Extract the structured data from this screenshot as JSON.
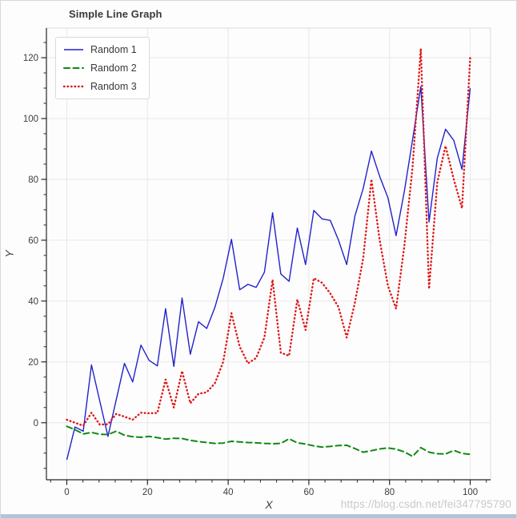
{
  "page": {
    "watermark": "https://blog.csdn.net/fei347795790"
  },
  "axes": {
    "x_label": "X",
    "y_label": "Y",
    "x_ticks": [
      0,
      20,
      40,
      60,
      80,
      100
    ],
    "y_ticks": [
      0,
      20,
      40,
      60,
      80,
      100,
      120
    ],
    "x_minor_step": 4,
    "y_minor_step": 5
  },
  "chart_data": {
    "type": "line",
    "title": "Simple Line Graph",
    "xlabel": "X",
    "ylabel": "Y",
    "xlim": [
      -5.05,
      105.05
    ],
    "ylim": [
      -18.75,
      129.75
    ],
    "grid": true,
    "legend_position": "upper left",
    "x": [
      0,
      2.04,
      4.08,
      6.12,
      8.16,
      10.2,
      12.24,
      14.29,
      16.33,
      18.37,
      20.41,
      22.45,
      24.49,
      26.53,
      28.57,
      30.61,
      32.65,
      34.69,
      36.73,
      38.78,
      40.82,
      42.86,
      44.9,
      46.94,
      48.98,
      51.02,
      53.06,
      55.1,
      57.14,
      59.18,
      61.22,
      63.27,
      65.31,
      67.35,
      69.39,
      71.43,
      73.47,
      75.51,
      77.55,
      79.59,
      81.63,
      83.67,
      85.71,
      87.76,
      89.8,
      91.84,
      93.88,
      95.92,
      97.96,
      100
    ],
    "series": [
      {
        "name": "Random 1",
        "color": "#2222cc",
        "style": "solid",
        "values": [
          -12.2,
          -1.4,
          -2.8,
          19,
          7.2,
          -4.5,
          7.5,
          19.5,
          13.4,
          25.5,
          20.5,
          18.7,
          37.5,
          18.5,
          41,
          22.5,
          33.2,
          31,
          38,
          47.5,
          60.3,
          43.7,
          45.5,
          44.5,
          49.5,
          69,
          48.9,
          46.5,
          64,
          52,
          69.8,
          67,
          66.5,
          60,
          52,
          68,
          77,
          89.3,
          81,
          74,
          61.5,
          76,
          93,
          110.5,
          66,
          87,
          96.5,
          92.8,
          83.3,
          110
        ]
      },
      {
        "name": "Random 2",
        "color": "#108a10",
        "style": "dashed",
        "values": [
          -1.2,
          -2.3,
          -3.7,
          -3.2,
          -3.8,
          -3.9,
          -2.8,
          -4.1,
          -4.6,
          -4.8,
          -4.5,
          -4.9,
          -5.4,
          -5.1,
          -5.2,
          -5.8,
          -6.2,
          -6.5,
          -6.8,
          -6.7,
          -6.1,
          -6.3,
          -6.5,
          -6.6,
          -6.8,
          -6.9,
          -6.8,
          -5.3,
          -6.6,
          -7,
          -7.6,
          -8,
          -7.8,
          -7.5,
          -7.4,
          -8.5,
          -9.7,
          -9.2,
          -8.6,
          -8.3,
          -8.7,
          -9.6,
          -11.1,
          -8.2,
          -9.7,
          -10.2,
          -10.3,
          -9.1,
          -10.1,
          -10.4
        ]
      },
      {
        "name": "Random 3",
        "color": "#e01717",
        "style": "dotted",
        "values": [
          1,
          0,
          -1,
          3.3,
          -0.6,
          -0.5,
          2.9,
          2,
          1,
          3.3,
          3.1,
          3.2,
          14.2,
          5,
          17,
          6.4,
          9.5,
          10,
          13,
          20,
          36,
          25,
          19.5,
          21.3,
          28,
          47,
          23,
          22,
          40.5,
          30.5,
          47.5,
          46,
          42.5,
          38,
          28,
          39.5,
          54,
          80,
          60,
          45,
          37.5,
          58,
          84,
          123,
          44,
          79,
          91,
          80,
          70.5,
          120
        ]
      }
    ]
  }
}
